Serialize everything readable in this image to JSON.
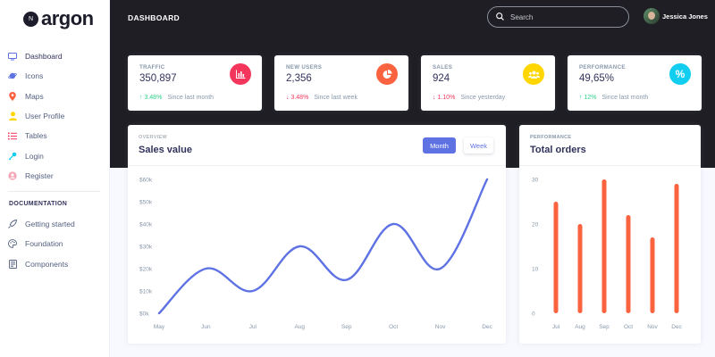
{
  "app": {
    "logo_text": "argon",
    "logo_badge": "N"
  },
  "sidebar": {
    "items": [
      {
        "label": "Dashboard",
        "icon": "monitor-icon",
        "color": "#5e72e4"
      },
      {
        "label": "Icons",
        "icon": "planet-icon",
        "color": "#5e72e4"
      },
      {
        "label": "Maps",
        "icon": "pin-icon",
        "color": "#fb6340"
      },
      {
        "label": "User Profile",
        "icon": "user-icon",
        "color": "#ffd600"
      },
      {
        "label": "Tables",
        "icon": "list-icon",
        "color": "#f5365c"
      },
      {
        "label": "Login",
        "icon": "key-icon",
        "color": "#11cdef"
      },
      {
        "label": "Register",
        "icon": "circle-user-icon",
        "color": "#f3a4b5"
      }
    ],
    "section_label": "DOCUMENTATION",
    "doc_items": [
      {
        "label": "Getting started",
        "icon": "spaceship-icon"
      },
      {
        "label": "Foundation",
        "icon": "palette-icon"
      },
      {
        "label": "Components",
        "icon": "ui-icon"
      }
    ]
  },
  "header": {
    "title": "DASHBOARD",
    "search_placeholder": "Search",
    "user_name": "Jessica Jones"
  },
  "stats": [
    {
      "title": "TRAFFIC",
      "value": "350,897",
      "change": "3.48%",
      "direction": "up",
      "since": "Since last month",
      "icon": "chart-bar-icon",
      "color": "#f5365c"
    },
    {
      "title": "NEW USERS",
      "value": "2,356",
      "change": "3.48%",
      "direction": "down",
      "since": "Since last week",
      "icon": "chart-pie-icon",
      "color": "#fb6340"
    },
    {
      "title": "SALES",
      "value": "924",
      "change": "1.10%",
      "direction": "down",
      "since": "Since yesterday",
      "icon": "users-icon",
      "color": "#ffd600"
    },
    {
      "title": "PERFORMANCE",
      "value": "49,65%",
      "change": "12%",
      "direction": "up",
      "since": "Since last month",
      "icon": "percent-icon",
      "color": "#11cdef"
    }
  ],
  "sales": {
    "kicker": "OVERVIEW",
    "title": "Sales value",
    "btn_month": "Month",
    "btn_week": "Week"
  },
  "orders": {
    "kicker": "PERFORMANCE",
    "title": "Total orders"
  },
  "chart_data": [
    {
      "type": "line",
      "categories": [
        "May",
        "Jun",
        "Jul",
        "Aug",
        "Sep",
        "Oct",
        "Nov",
        "Dec"
      ],
      "values": [
        0,
        20,
        10,
        30,
        15,
        40,
        20,
        60
      ],
      "yticks": [
        "$0k",
        "$10k",
        "$20k",
        "$30k",
        "$40k",
        "$50k",
        "$60k"
      ],
      "ylim": [
        0,
        60
      ],
      "color": "#5e72e4"
    },
    {
      "type": "bar",
      "categories": [
        "Jul",
        "Aug",
        "Sep",
        "Oct",
        "Nov",
        "Dec"
      ],
      "values": [
        25,
        20,
        30,
        22,
        17,
        29
      ],
      "yticks": [
        "0",
        "10",
        "20",
        "30"
      ],
      "ylim": [
        0,
        30
      ],
      "color": "#fb6340"
    }
  ]
}
